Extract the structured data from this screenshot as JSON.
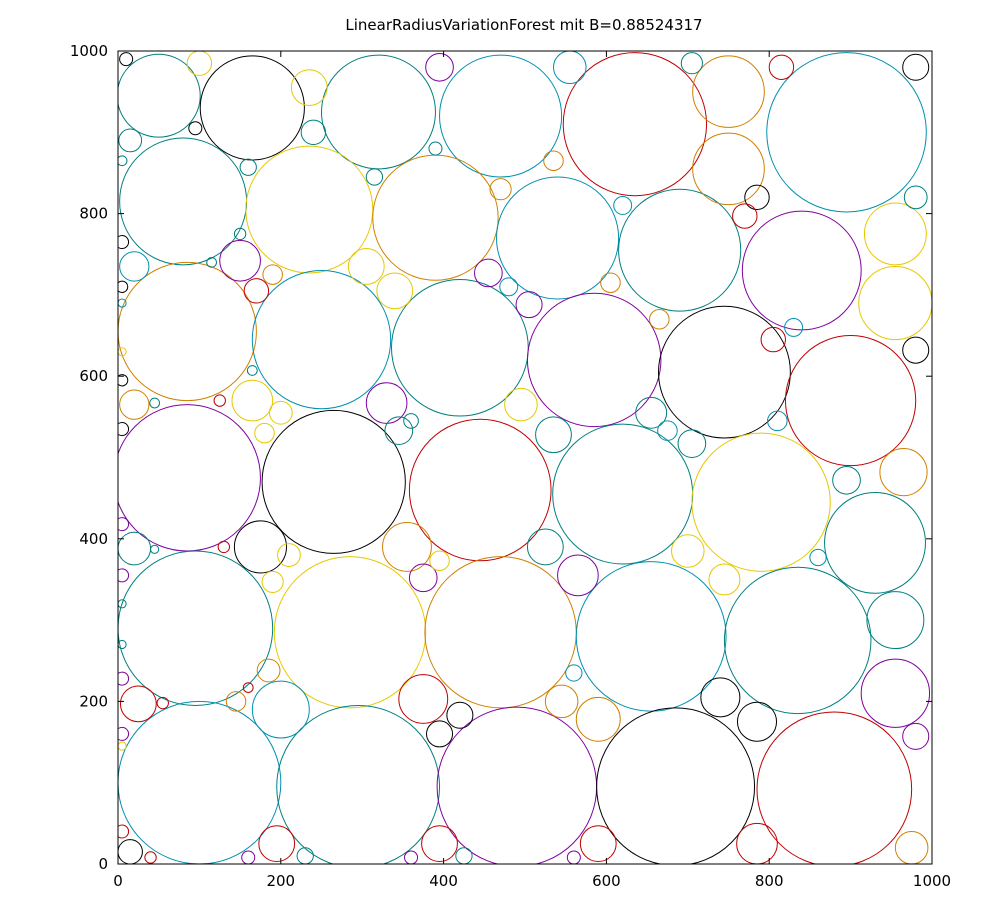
{
  "chart_data": {
    "type": "scatter",
    "title": "LinearRadiusVariationForest mit B=0.88524317",
    "xlim": [
      0,
      1000
    ],
    "ylim": [
      0,
      1000
    ],
    "xticks": [
      0,
      200,
      400,
      600,
      800,
      1000
    ],
    "yticks": [
      0,
      200,
      400,
      600,
      800,
      1000
    ],
    "grid": false,
    "legend": "none",
    "palette": {
      "teal": "#007f7f",
      "black": "#000000",
      "red": "#c00000",
      "purple": "#8000a0",
      "orange": "#d08000",
      "yellow": "#e8c800",
      "cyan": "#0090b0",
      "green": "#008040"
    },
    "circles": [
      {
        "x": 50,
        "y": 945,
        "r": 51,
        "c": "teal"
      },
      {
        "x": 165,
        "y": 930,
        "r": 64,
        "c": "black"
      },
      {
        "x": 320,
        "y": 925,
        "r": 70,
        "c": "teal"
      },
      {
        "x": 470,
        "y": 920,
        "r": 75,
        "c": "cyan"
      },
      {
        "x": 635,
        "y": 910,
        "r": 88,
        "c": "red"
      },
      {
        "x": 750,
        "y": 950,
        "r": 44,
        "c": "orange"
      },
      {
        "x": 895,
        "y": 900,
        "r": 98,
        "c": "cyan"
      },
      {
        "x": 80,
        "y": 815,
        "r": 78,
        "c": "teal"
      },
      {
        "x": 235,
        "y": 805,
        "r": 78,
        "c": "yellow"
      },
      {
        "x": 390,
        "y": 795,
        "r": 77,
        "c": "orange"
      },
      {
        "x": 540,
        "y": 770,
        "r": 75,
        "c": "cyan"
      },
      {
        "x": 690,
        "y": 755,
        "r": 75,
        "c": "teal"
      },
      {
        "x": 840,
        "y": 730,
        "r": 73,
        "c": "purple"
      },
      {
        "x": 750,
        "y": 855,
        "r": 44,
        "c": "orange"
      },
      {
        "x": 85,
        "y": 655,
        "r": 85,
        "c": "orange"
      },
      {
        "x": 250,
        "y": 645,
        "r": 85,
        "c": "cyan"
      },
      {
        "x": 420,
        "y": 635,
        "r": 84,
        "c": "teal"
      },
      {
        "x": 585,
        "y": 620,
        "r": 82,
        "c": "purple"
      },
      {
        "x": 745,
        "y": 605,
        "r": 81,
        "c": "black"
      },
      {
        "x": 900,
        "y": 570,
        "r": 80,
        "c": "red"
      },
      {
        "x": 955,
        "y": 690,
        "r": 45,
        "c": "yellow"
      },
      {
        "x": 955,
        "y": 775,
        "r": 38,
        "c": "yellow"
      },
      {
        "x": 85,
        "y": 475,
        "r": 90,
        "c": "purple"
      },
      {
        "x": 265,
        "y": 470,
        "r": 88,
        "c": "black"
      },
      {
        "x": 445,
        "y": 460,
        "r": 87,
        "c": "red"
      },
      {
        "x": 620,
        "y": 455,
        "r": 86,
        "c": "teal"
      },
      {
        "x": 790,
        "y": 445,
        "r": 85,
        "c": "yellow"
      },
      {
        "x": 930,
        "y": 395,
        "r": 62,
        "c": "teal"
      },
      {
        "x": 95,
        "y": 290,
        "r": 95,
        "c": "teal"
      },
      {
        "x": 285,
        "y": 285,
        "r": 93,
        "c": "yellow"
      },
      {
        "x": 470,
        "y": 285,
        "r": 93,
        "c": "orange"
      },
      {
        "x": 655,
        "y": 280,
        "r": 92,
        "c": "cyan"
      },
      {
        "x": 835,
        "y": 275,
        "r": 90,
        "c": "teal"
      },
      {
        "x": 955,
        "y": 300,
        "r": 35,
        "c": "teal"
      },
      {
        "x": 100,
        "y": 100,
        "r": 100,
        "c": "cyan"
      },
      {
        "x": 295,
        "y": 95,
        "r": 100,
        "c": "teal"
      },
      {
        "x": 490,
        "y": 95,
        "r": 98,
        "c": "purple"
      },
      {
        "x": 685,
        "y": 95,
        "r": 97,
        "c": "black"
      },
      {
        "x": 880,
        "y": 92,
        "r": 95,
        "c": "red"
      },
      {
        "x": 955,
        "y": 210,
        "r": 42,
        "c": "purple"
      },
      {
        "x": 965,
        "y": 482,
        "r": 29,
        "c": "orange"
      },
      {
        "x": 175,
        "y": 390,
        "r": 32,
        "c": "black"
      },
      {
        "x": 355,
        "y": 390,
        "r": 30,
        "c": "orange"
      },
      {
        "x": 525,
        "y": 390,
        "r": 22,
        "c": "teal"
      },
      {
        "x": 565,
        "y": 355,
        "r": 25,
        "c": "purple"
      },
      {
        "x": 235,
        "y": 955,
        "r": 22,
        "c": "yellow"
      },
      {
        "x": 240,
        "y": 900,
        "r": 15,
        "c": "teal"
      },
      {
        "x": 10,
        "y": 990,
        "r": 8,
        "c": "black"
      },
      {
        "x": 980,
        "y": 980,
        "r": 16,
        "c": "black"
      },
      {
        "x": 555,
        "y": 980,
        "r": 20,
        "c": "cyan"
      },
      {
        "x": 705,
        "y": 985,
        "r": 13,
        "c": "teal"
      },
      {
        "x": 815,
        "y": 980,
        "r": 15,
        "c": "red"
      },
      {
        "x": 395,
        "y": 980,
        "r": 17,
        "c": "purple"
      },
      {
        "x": 100,
        "y": 985,
        "r": 15,
        "c": "yellow"
      },
      {
        "x": 95,
        "y": 905,
        "r": 8,
        "c": "black"
      },
      {
        "x": 15,
        "y": 890,
        "r": 14,
        "c": "teal"
      },
      {
        "x": 5,
        "y": 865,
        "r": 6,
        "c": "teal"
      },
      {
        "x": 160,
        "y": 857,
        "r": 10,
        "c": "teal"
      },
      {
        "x": 315,
        "y": 845,
        "r": 10,
        "c": "teal"
      },
      {
        "x": 390,
        "y": 880,
        "r": 8,
        "c": "teal"
      },
      {
        "x": 535,
        "y": 865,
        "r": 12,
        "c": "orange"
      },
      {
        "x": 470,
        "y": 830,
        "r": 13,
        "c": "orange"
      },
      {
        "x": 620,
        "y": 810,
        "r": 11,
        "c": "cyan"
      },
      {
        "x": 785,
        "y": 820,
        "r": 15,
        "c": "black"
      },
      {
        "x": 770,
        "y": 797,
        "r": 15,
        "c": "red"
      },
      {
        "x": 980,
        "y": 820,
        "r": 14,
        "c": "teal"
      },
      {
        "x": 5,
        "y": 765,
        "r": 8,
        "c": "black"
      },
      {
        "x": 20,
        "y": 735,
        "r": 18,
        "c": "cyan"
      },
      {
        "x": 150,
        "y": 775,
        "r": 7,
        "c": "teal"
      },
      {
        "x": 115,
        "y": 740,
        "r": 6,
        "c": "teal"
      },
      {
        "x": 150,
        "y": 742,
        "r": 25,
        "c": "purple"
      },
      {
        "x": 190,
        "y": 725,
        "r": 12,
        "c": "orange"
      },
      {
        "x": 170,
        "y": 705,
        "r": 15,
        "c": "red"
      },
      {
        "x": 305,
        "y": 735,
        "r": 22,
        "c": "yellow"
      },
      {
        "x": 340,
        "y": 705,
        "r": 22,
        "c": "yellow"
      },
      {
        "x": 455,
        "y": 727,
        "r": 17,
        "c": "purple"
      },
      {
        "x": 480,
        "y": 710,
        "r": 11,
        "c": "cyan"
      },
      {
        "x": 505,
        "y": 688,
        "r": 16,
        "c": "purple"
      },
      {
        "x": 605,
        "y": 715,
        "r": 12,
        "c": "orange"
      },
      {
        "x": 665,
        "y": 670,
        "r": 12,
        "c": "orange"
      },
      {
        "x": 830,
        "y": 660,
        "r": 11,
        "c": "cyan"
      },
      {
        "x": 805,
        "y": 645,
        "r": 15,
        "c": "red"
      },
      {
        "x": 980,
        "y": 632,
        "r": 16,
        "c": "black"
      },
      {
        "x": 5,
        "y": 710,
        "r": 7,
        "c": "black"
      },
      {
        "x": 5,
        "y": 595,
        "r": 7,
        "c": "black"
      },
      {
        "x": 165,
        "y": 607,
        "r": 6,
        "c": "teal"
      },
      {
        "x": 20,
        "y": 565,
        "r": 18,
        "c": "orange"
      },
      {
        "x": 45,
        "y": 567,
        "r": 6,
        "c": "teal"
      },
      {
        "x": 125,
        "y": 570,
        "r": 7,
        "c": "red"
      },
      {
        "x": 165,
        "y": 570,
        "r": 25,
        "c": "yellow"
      },
      {
        "x": 200,
        "y": 555,
        "r": 14,
        "c": "yellow"
      },
      {
        "x": 180,
        "y": 530,
        "r": 12,
        "c": "yellow"
      },
      {
        "x": 330,
        "y": 567,
        "r": 25,
        "c": "purple"
      },
      {
        "x": 360,
        "y": 545,
        "r": 9,
        "c": "teal"
      },
      {
        "x": 345,
        "y": 533,
        "r": 17,
        "c": "teal"
      },
      {
        "x": 495,
        "y": 565,
        "r": 20,
        "c": "yellow"
      },
      {
        "x": 535,
        "y": 528,
        "r": 22,
        "c": "teal"
      },
      {
        "x": 655,
        "y": 555,
        "r": 19,
        "c": "teal"
      },
      {
        "x": 675,
        "y": 533,
        "r": 12,
        "c": "cyan"
      },
      {
        "x": 705,
        "y": 517,
        "r": 17,
        "c": "teal"
      },
      {
        "x": 810,
        "y": 545,
        "r": 12,
        "c": "cyan"
      },
      {
        "x": 895,
        "y": 472,
        "r": 17,
        "c": "teal"
      },
      {
        "x": 5,
        "y": 535,
        "r": 8,
        "c": "black"
      },
      {
        "x": 5,
        "y": 418,
        "r": 8,
        "c": "purple"
      },
      {
        "x": 20,
        "y": 388,
        "r": 20,
        "c": "teal"
      },
      {
        "x": 45,
        "y": 387,
        "r": 5,
        "c": "teal"
      },
      {
        "x": 130,
        "y": 390,
        "r": 7,
        "c": "red"
      },
      {
        "x": 210,
        "y": 380,
        "r": 14,
        "c": "yellow"
      },
      {
        "x": 375,
        "y": 352,
        "r": 17,
        "c": "purple"
      },
      {
        "x": 395,
        "y": 373,
        "r": 12,
        "c": "yellow"
      },
      {
        "x": 700,
        "y": 385,
        "r": 20,
        "c": "yellow"
      },
      {
        "x": 745,
        "y": 350,
        "r": 19,
        "c": "yellow"
      },
      {
        "x": 860,
        "y": 377,
        "r": 10,
        "c": "cyan"
      },
      {
        "x": 190,
        "y": 347,
        "r": 13,
        "c": "yellow"
      },
      {
        "x": 5,
        "y": 355,
        "r": 8,
        "c": "purple"
      },
      {
        "x": 185,
        "y": 238,
        "r": 14,
        "c": "orange"
      },
      {
        "x": 200,
        "y": 190,
        "r": 35,
        "c": "cyan"
      },
      {
        "x": 160,
        "y": 217,
        "r": 6,
        "c": "red"
      },
      {
        "x": 145,
        "y": 200,
        "r": 12,
        "c": "orange"
      },
      {
        "x": 5,
        "y": 228,
        "r": 8,
        "c": "purple"
      },
      {
        "x": 25,
        "y": 197,
        "r": 22,
        "c": "red"
      },
      {
        "x": 55,
        "y": 198,
        "r": 7,
        "c": "red"
      },
      {
        "x": 5,
        "y": 160,
        "r": 8,
        "c": "purple"
      },
      {
        "x": 375,
        "y": 203,
        "r": 30,
        "c": "red"
      },
      {
        "x": 420,
        "y": 183,
        "r": 16,
        "c": "black"
      },
      {
        "x": 395,
        "y": 160,
        "r": 16,
        "c": "black"
      },
      {
        "x": 545,
        "y": 200,
        "r": 20,
        "c": "orange"
      },
      {
        "x": 560,
        "y": 235,
        "r": 10,
        "c": "cyan"
      },
      {
        "x": 590,
        "y": 178,
        "r": 27,
        "c": "orange"
      },
      {
        "x": 740,
        "y": 205,
        "r": 24,
        "c": "black"
      },
      {
        "x": 785,
        "y": 175,
        "r": 24,
        "c": "black"
      },
      {
        "x": 980,
        "y": 157,
        "r": 16,
        "c": "purple"
      },
      {
        "x": 5,
        "y": 40,
        "r": 8,
        "c": "red"
      },
      {
        "x": 15,
        "y": 15,
        "r": 15,
        "c": "black"
      },
      {
        "x": 40,
        "y": 8,
        "r": 7,
        "c": "red"
      },
      {
        "x": 160,
        "y": 8,
        "r": 8,
        "c": "purple"
      },
      {
        "x": 195,
        "y": 25,
        "r": 22,
        "c": "red"
      },
      {
        "x": 230,
        "y": 10,
        "r": 10,
        "c": "teal"
      },
      {
        "x": 360,
        "y": 8,
        "r": 8,
        "c": "purple"
      },
      {
        "x": 395,
        "y": 25,
        "r": 22,
        "c": "red"
      },
      {
        "x": 425,
        "y": 10,
        "r": 10,
        "c": "teal"
      },
      {
        "x": 560,
        "y": 8,
        "r": 8,
        "c": "purple"
      },
      {
        "x": 590,
        "y": 25,
        "r": 22,
        "c": "red"
      },
      {
        "x": 785,
        "y": 25,
        "r": 25,
        "c": "red"
      },
      {
        "x": 975,
        "y": 20,
        "r": 20,
        "c": "orange"
      },
      {
        "x": 5,
        "y": 145,
        "r": 5,
        "c": "yellow"
      },
      {
        "x": 5,
        "y": 270,
        "r": 5,
        "c": "teal"
      },
      {
        "x": 5,
        "y": 320,
        "r": 5,
        "c": "teal"
      },
      {
        "x": 5,
        "y": 690,
        "r": 5,
        "c": "cyan"
      },
      {
        "x": 5,
        "y": 630,
        "r": 5,
        "c": "yellow"
      }
    ]
  }
}
